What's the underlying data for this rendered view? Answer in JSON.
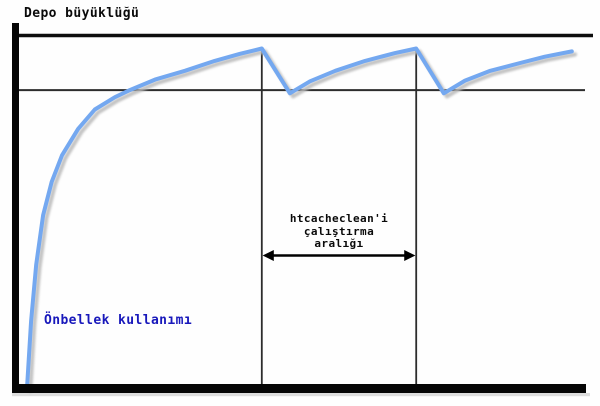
{
  "figure": {
    "title": "Depo büyüklüğü",
    "curve_label": "Önbellek kullanımı",
    "interval_label_lines": [
      "htcacheclean'i",
      "çalıştırma",
      "aralığı"
    ],
    "colors": {
      "curve": "#74a8f0",
      "curve_shadow": "#b9b9b9",
      "axis": "#050505",
      "reference_line": "#0d0d0d",
      "thin_line": "#2d2d2d",
      "curve_label_text": "#1818bb",
      "annotation_text": "#0a0a0a"
    }
  },
  "chart_data": {
    "type": "line",
    "title": "Depo büyüklüğü",
    "xlabel": "",
    "ylabel": "Depo büyüklüğü",
    "xlim": [
      0,
      100
    ],
    "ylim": [
      0,
      1.1
    ],
    "grid": false,
    "legend": "none",
    "annotation": "htcacheclean'i çalıştırma aralığı",
    "reference_lines": {
      "storage_limit": 1.0,
      "cleanup_target": 0.845
    },
    "cleanup_runs_t": [
      42.3,
      69.2
    ],
    "series": [
      {
        "name": "Önbellek kullanımı",
        "points": [
          [
            1.4,
            0.0
          ],
          [
            2.1,
            0.19
          ],
          [
            3.0,
            0.35
          ],
          [
            4.2,
            0.49
          ],
          [
            5.7,
            0.585
          ],
          [
            7.5,
            0.66
          ],
          [
            10.3,
            0.735
          ],
          [
            13.2,
            0.79
          ],
          [
            16.7,
            0.825
          ],
          [
            19.3,
            0.845
          ],
          [
            23.7,
            0.875
          ],
          [
            28.9,
            0.9
          ],
          [
            34.1,
            0.928
          ],
          [
            38.5,
            0.948
          ],
          [
            42.3,
            0.963
          ],
          [
            47.2,
            0.836
          ],
          [
            50.7,
            0.87
          ],
          [
            55.1,
            0.9
          ],
          [
            60.3,
            0.928
          ],
          [
            65.5,
            0.95
          ],
          [
            69.2,
            0.963
          ],
          [
            74.0,
            0.836
          ],
          [
            77.7,
            0.872
          ],
          [
            82.1,
            0.9
          ],
          [
            87.3,
            0.922
          ],
          [
            91.6,
            0.94
          ],
          [
            96.3,
            0.955
          ]
        ]
      }
    ]
  }
}
